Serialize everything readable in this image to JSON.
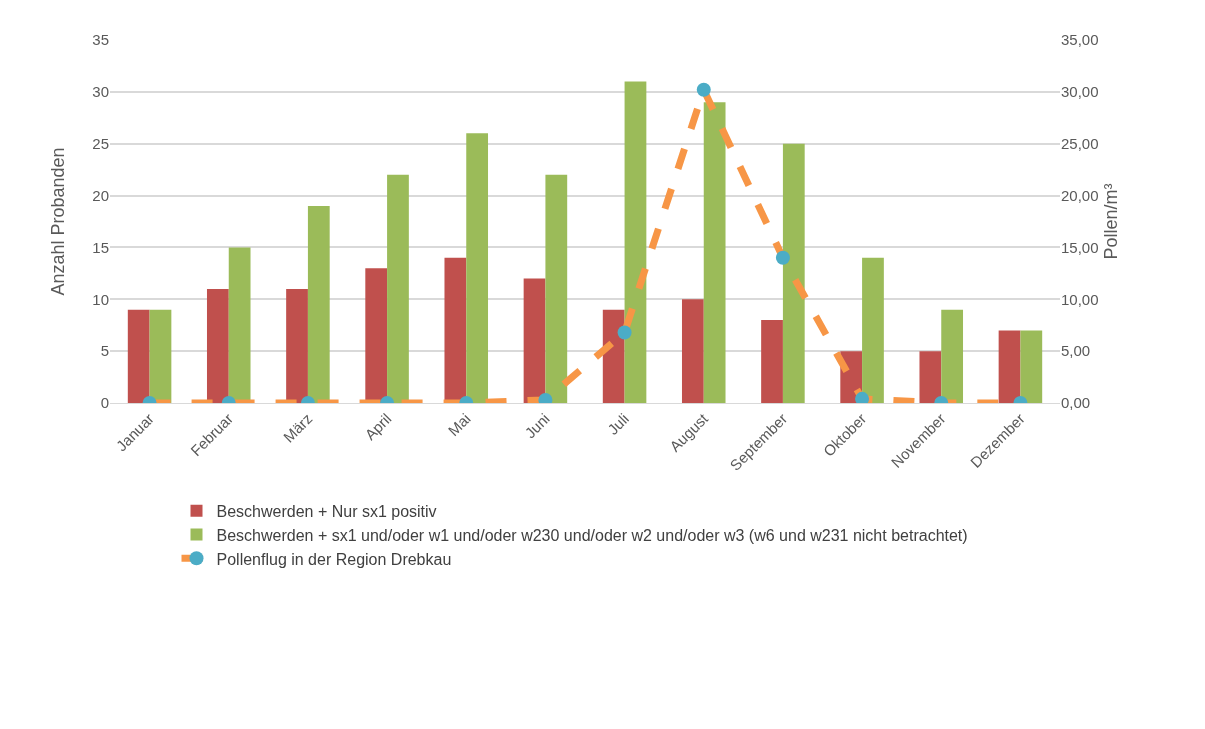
{
  "chart_data": {
    "type": "bar",
    "ylabel": "Anzahl Probanden",
    "y2label": "Pollen/m³",
    "categories": [
      "Januar",
      "Februar",
      "März",
      "April",
      "Mai",
      "Juni",
      "Juli",
      "August",
      "September",
      "Oktober",
      "November",
      "Dezember"
    ],
    "series": [
      {
        "name": "Beschwerden + Nur sx1 positiv",
        "color": "#c0504d",
        "values": [
          9,
          11,
          11,
          13,
          14,
          12,
          9,
          10,
          8,
          5,
          5,
          7
        ]
      },
      {
        "name": "Beschwerden + sx1 und/oder w1 und/oder w230 und/oder w2 und/oder w3 (w6 und w231 nicht betrachtet)",
        "color": "#9bbb59",
        "values": [
          9,
          15,
          19,
          22,
          26,
          22,
          31,
          29,
          25,
          14,
          9,
          7
        ]
      },
      {
        "name": "Pollenflug in der Region Drebkau",
        "type": "line",
        "axis": "y2",
        "color": "#f79646",
        "colors": [
          "#4bacc6",
          "#4bacc6",
          "#4bacc6",
          "#4bacc6",
          "#4bacc6",
          "#4bacc6",
          "#4bacc6",
          "#4bacc6",
          "#4bacc6",
          "#4bacc6",
          "#4bacc6",
          "#4bacc6"
        ],
        "marker": "circle",
        "line_style": "dashed",
        "values": [
          0,
          0,
          0,
          0,
          0,
          0.3,
          6.8,
          30.2,
          14,
          0.4,
          0,
          0
        ]
      }
    ],
    "ylim": [
      0,
      35
    ],
    "yticks": [
      0,
      5,
      10,
      15,
      20,
      25,
      30,
      35
    ],
    "y2lim": [
      0,
      35
    ],
    "y2ticks": [
      {
        "value": 0,
        "label": "0,00"
      },
      {
        "value": 5,
        "label": "5,00"
      },
      {
        "value": 10,
        "label": "10,00"
      },
      {
        "value": 15,
        "label": "15,00"
      },
      {
        "value": 20,
        "label": "20,00"
      },
      {
        "value": 25,
        "label": "25,00"
      },
      {
        "value": 30,
        "label": "30,00"
      },
      {
        "value": 35,
        "label": "35,00"
      }
    ],
    "grid": "y",
    "legend": "bottom"
  }
}
